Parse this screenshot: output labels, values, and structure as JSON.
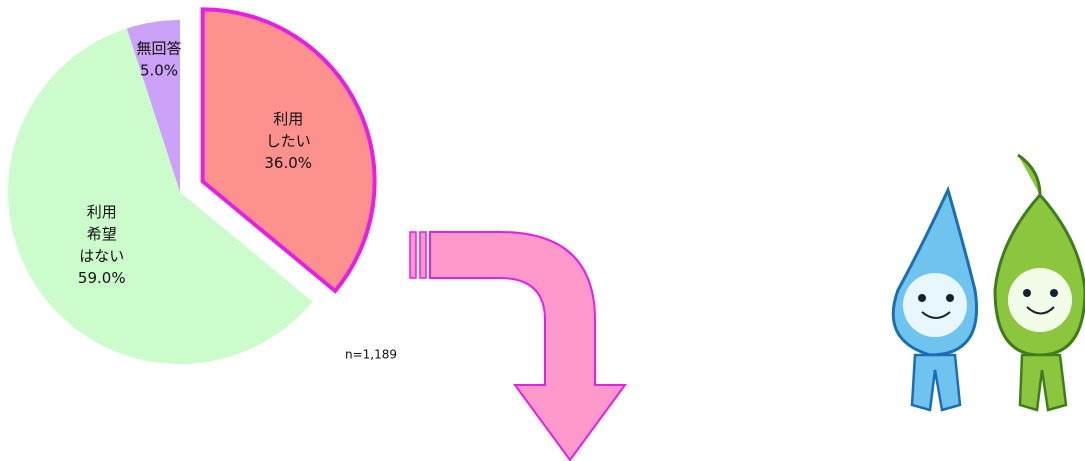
{
  "chart_data": {
    "type": "pie",
    "categories": [
      [
        "利用",
        "したい"
      ],
      [
        "利用",
        "希望",
        "はない"
      ],
      [
        "無回答"
      ]
    ],
    "values": [
      36.0,
      59.0,
      5.0
    ],
    "value_labels": [
      "36.0%",
      "59.0%",
      "5.0%"
    ],
    "colors": [
      "#fd918d",
      "#ccfccb",
      "#cba2f7"
    ],
    "explode": [
      true,
      false,
      false
    ],
    "highlight_color": "#e61ee6",
    "annotation": "n=1,189"
  }
}
